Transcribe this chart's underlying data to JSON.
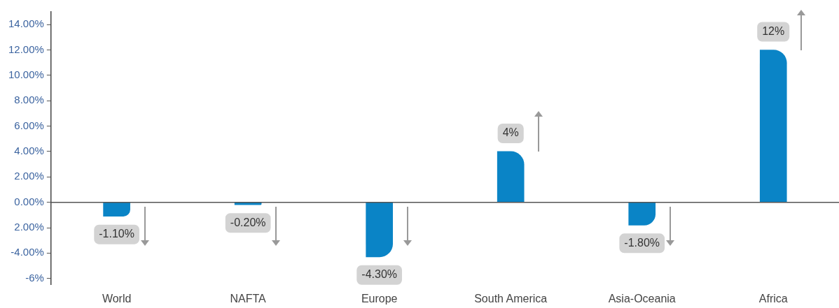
{
  "chart_data": {
    "type": "bar",
    "categories": [
      "World",
      "NAFTA",
      "Europe",
      "South America",
      "Asia-Oceania",
      "Africa"
    ],
    "values": [
      -1.1,
      -0.2,
      -4.3,
      4,
      -1.8,
      12
    ],
    "value_labels": [
      "-1.10%",
      "-0.20%",
      "-4.30%",
      "4%",
      "-1.80%",
      "12%"
    ],
    "color": "#0a84c6",
    "ylim": [
      -6.5,
      15
    ],
    "yticks": [
      {
        "value": -6,
        "label": "-6%"
      },
      {
        "value": -4,
        "label": "-4.00%"
      },
      {
        "value": -2,
        "label": "2.00%"
      },
      {
        "value": 0,
        "label": "0.00%"
      },
      {
        "value": 2,
        "label": "2.00%"
      },
      {
        "value": 4,
        "label": "4.00%"
      },
      {
        "value": 6,
        "label": "6.00%"
      },
      {
        "value": 8,
        "label": "8.00%"
      },
      {
        "value": 10,
        "label": "10.00%"
      },
      {
        "value": 12,
        "label": "12.00%"
      },
      {
        "value": 14,
        "label": "14.00%"
      }
    ],
    "legend": false
  }
}
